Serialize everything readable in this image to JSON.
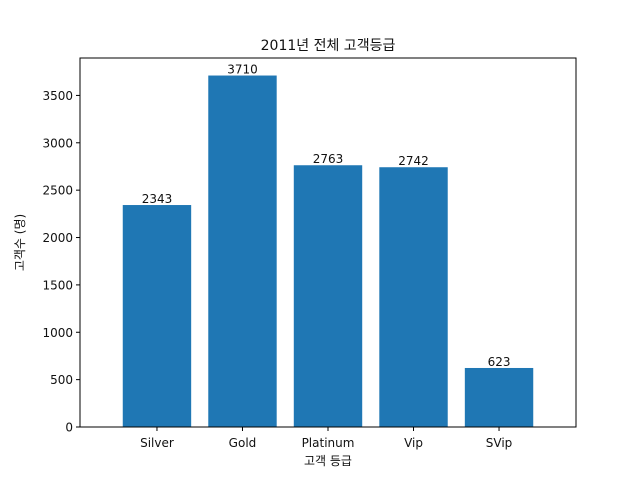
{
  "chart_data": {
    "type": "bar",
    "title": "2011년 전체 고객등급",
    "xlabel": "고객 등급",
    "ylabel": "고객수 (명)",
    "categories": [
      "Silver",
      "Gold",
      "Platinum",
      "Vip",
      "SVip"
    ],
    "values": [
      2343,
      3710,
      2763,
      2742,
      623
    ],
    "data_labels": [
      "2343",
      "3710",
      "2763",
      "2742",
      "623"
    ],
    "ylim": [
      0,
      3895
    ],
    "yticks": [
      0,
      500,
      1000,
      1500,
      2000,
      2500,
      3000,
      3500
    ],
    "ytick_labels": [
      "0",
      "500",
      "1000",
      "1500",
      "2000",
      "2500",
      "3000",
      "3500"
    ],
    "bar_color": "#1f77b4",
    "grid": false,
    "legend": "none"
  }
}
